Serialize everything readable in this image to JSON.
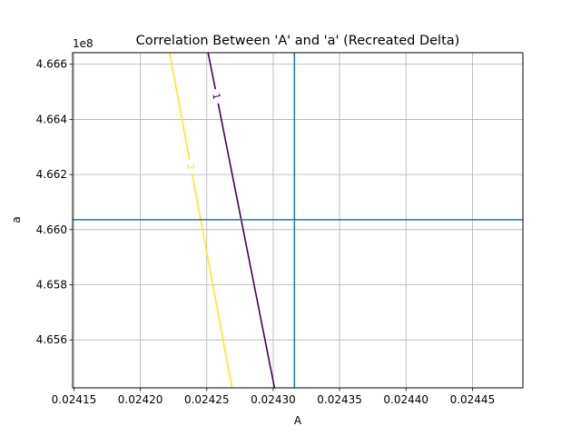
{
  "chart_data": {
    "type": "line",
    "title": "Correlation Between 'A' and 'a' (Recreated Delta)",
    "xlabel": "A",
    "ylabel": "a",
    "y_offset_text": "1e8",
    "xlim": [
      0.024149,
      0.024488
    ],
    "ylim": [
      465426000,
      466642000
    ],
    "x_ticks": [
      0.02415,
      0.0242,
      0.02425,
      0.0243,
      0.02435,
      0.0244,
      0.02445
    ],
    "x_tick_labels": [
      "0.02415",
      "0.02420",
      "0.02425",
      "0.02430",
      "0.02435",
      "0.02440",
      "0.02445"
    ],
    "y_ticks": [
      465600000,
      465800000,
      466000000,
      466200000,
      466400000,
      466600000
    ],
    "y_tick_labels": [
      "4.656",
      "4.658",
      "4.660",
      "4.662",
      "4.664",
      "4.666"
    ],
    "grid": true,
    "series": [
      {
        "name": "",
        "label": "1",
        "color": "#440154",
        "x": [
          0.024251,
          0.024301
        ],
        "y": [
          466642000,
          465426000
        ]
      },
      {
        "name": "",
        "label": "2",
        "color": "#fde725",
        "x": [
          0.024222,
          0.024269
        ],
        "y": [
          466642000,
          465426000
        ]
      }
    ],
    "reference_lines": {
      "color": "#1f77b4",
      "vertical_x": 0.024316,
      "horizontal_y": 466036000
    }
  }
}
